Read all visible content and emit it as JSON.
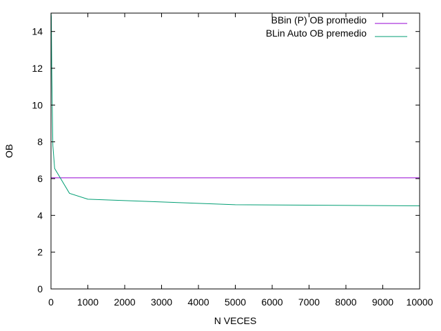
{
  "chart_data": {
    "type": "line",
    "title": "",
    "xlabel": "N VECES",
    "ylabel": "OB",
    "xlim": [
      0,
      10000
    ],
    "ylim": [
      0,
      15
    ],
    "xticks": [
      0,
      1000,
      2000,
      3000,
      4000,
      5000,
      6000,
      7000,
      8000,
      9000,
      10000
    ],
    "yticks": [
      0,
      2,
      4,
      6,
      8,
      10,
      12,
      14
    ],
    "xtick_labels": [
      "0",
      "1000",
      "2000",
      "3000",
      "4000",
      "5000",
      "6000",
      "7000",
      "8000",
      "9000",
      "10000"
    ],
    "ytick_labels": [
      "0",
      "2",
      "4",
      "6",
      "8",
      "10",
      "12",
      "14"
    ],
    "grid": false,
    "legend_position": "top-right",
    "series": [
      {
        "name": "BBin (P) OB promedio",
        "color": "#9400d3",
        "x": [
          0,
          10000
        ],
        "y": [
          6.04,
          6.04
        ]
      },
      {
        "name": "BLin Auto OB premedio",
        "color": "#009e73",
        "x": [
          1,
          10,
          20,
          50,
          100,
          500,
          1000,
          5000,
          10000
        ],
        "y": [
          15.0,
          14.8,
          11.9,
          7.8,
          6.55,
          5.2,
          4.88,
          4.58,
          4.52
        ]
      }
    ]
  }
}
